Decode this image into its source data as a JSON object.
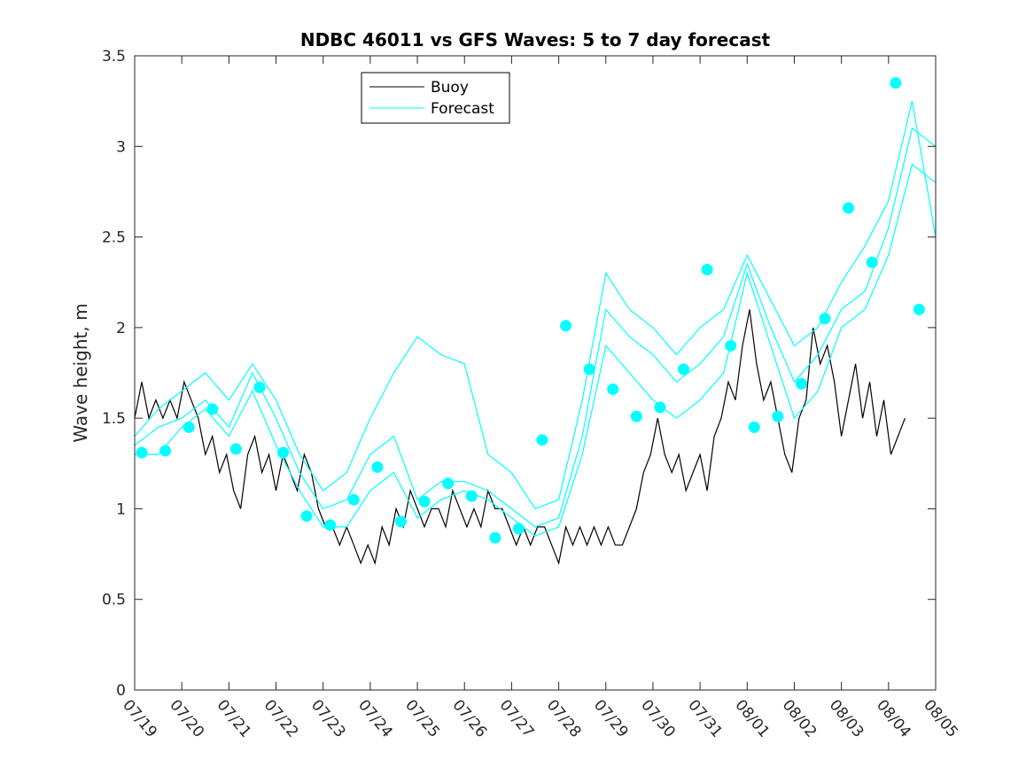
{
  "chart_data": {
    "type": "line",
    "title": "NDBC 46011 vs GFS Waves: 5 to 7 day forecast",
    "xlabel": "",
    "ylabel": "Wave height, m",
    "x_tick_labels": [
      "07/19",
      "07/20",
      "07/21",
      "07/22",
      "07/23",
      "07/24",
      "07/25",
      "07/26",
      "07/27",
      "07/28",
      "07/29",
      "07/30",
      "07/31",
      "08/01",
      "08/02",
      "08/03",
      "08/04",
      "08/05"
    ],
    "y_tick_labels": [
      "0",
      "0.5",
      "1",
      "1.5",
      "2",
      "2.5",
      "3",
      "3.5"
    ],
    "xlim": [
      0,
      17
    ],
    "ylim": [
      0,
      3.5
    ],
    "grid": false,
    "legend_position": "top-center",
    "colors": {
      "buoy": "#000000",
      "forecast": "#00ffff",
      "axes": "#262626"
    },
    "series": [
      {
        "name": "Buoy",
        "style": "line",
        "x": [
          0,
          0.15,
          0.3,
          0.45,
          0.6,
          0.75,
          0.9,
          1.05,
          1.2,
          1.35,
          1.5,
          1.65,
          1.8,
          1.95,
          2.1,
          2.25,
          2.4,
          2.55,
          2.7,
          2.85,
          3.0,
          3.15,
          3.3,
          3.45,
          3.6,
          3.75,
          3.9,
          4.05,
          4.2,
          4.35,
          4.5,
          4.65,
          4.8,
          4.95,
          5.1,
          5.25,
          5.4,
          5.55,
          5.7,
          5.85,
          6.0,
          6.15,
          6.3,
          6.45,
          6.6,
          6.75,
          6.9,
          7.05,
          7.2,
          7.35,
          7.5,
          7.65,
          7.8,
          7.95,
          8.1,
          8.25,
          8.4,
          8.55,
          8.7,
          8.85,
          9.0,
          9.15,
          9.3,
          9.45,
          9.6,
          9.75,
          9.9,
          10.05,
          10.2,
          10.35,
          10.5,
          10.65,
          10.8,
          10.95,
          11.1,
          11.25,
          11.4,
          11.55,
          11.7,
          11.85,
          12.0,
          12.15,
          12.3,
          12.45,
          12.6,
          12.75,
          12.9,
          13.05,
          13.2,
          13.35,
          13.5,
          13.65,
          13.8,
          13.95,
          14.1,
          14.25,
          14.4,
          14.55,
          14.7,
          14.85,
          15.0,
          15.15,
          15.3,
          15.45,
          15.6,
          15.75,
          15.9,
          16.05,
          16.2,
          16.35
        ],
        "y": [
          1.5,
          1.7,
          1.5,
          1.6,
          1.5,
          1.6,
          1.5,
          1.7,
          1.6,
          1.5,
          1.3,
          1.4,
          1.2,
          1.3,
          1.1,
          1.0,
          1.3,
          1.4,
          1.2,
          1.3,
          1.1,
          1.3,
          1.2,
          1.1,
          1.3,
          1.2,
          1.0,
          0.9,
          0.9,
          0.8,
          0.9,
          0.8,
          0.7,
          0.8,
          0.7,
          0.9,
          0.8,
          1.0,
          0.9,
          1.1,
          1.0,
          0.9,
          1.0,
          1.0,
          0.9,
          1.1,
          1.0,
          0.9,
          1.0,
          0.9,
          1.1,
          1.0,
          1.0,
          0.9,
          0.8,
          0.9,
          0.8,
          0.9,
          0.9,
          0.8,
          0.7,
          0.9,
          0.8,
          0.9,
          0.8,
          0.9,
          0.8,
          0.9,
          0.8,
          0.8,
          0.9,
          1.0,
          1.2,
          1.3,
          1.5,
          1.3,
          1.2,
          1.3,
          1.1,
          1.2,
          1.3,
          1.1,
          1.4,
          1.5,
          1.7,
          1.6,
          1.9,
          2.1,
          1.8,
          1.6,
          1.7,
          1.5,
          1.3,
          1.2,
          1.5,
          1.6,
          2.0,
          1.8,
          1.9,
          1.7,
          1.4,
          1.6,
          1.8,
          1.5,
          1.7,
          1.4,
          1.6,
          1.3,
          1.4,
          1.5
        ]
      },
      {
        "name": "Forecast",
        "style": "line",
        "x": [
          0,
          0.5,
          1.0,
          1.5,
          2.0,
          2.5,
          3.0,
          3.5,
          4.0,
          4.5,
          5.0,
          5.5,
          6.0,
          6.5,
          7.0,
          7.5,
          8.0,
          8.5,
          9.0,
          9.5,
          10.0,
          10.5,
          11.0,
          11.5,
          12.0,
          12.5,
          13.0,
          13.5,
          14.0,
          14.5,
          15.0,
          15.5,
          16.0,
          16.5,
          17.0
        ],
        "y": [
          1.3,
          1.3,
          1.45,
          1.55,
          1.4,
          1.65,
          1.35,
          1.1,
          0.9,
          0.9,
          1.1,
          1.2,
          0.95,
          1.05,
          1.1,
          1.05,
          0.95,
          0.85,
          0.9,
          1.3,
          1.9,
          1.75,
          1.6,
          1.5,
          1.6,
          1.75,
          2.3,
          1.9,
          1.5,
          1.65,
          2.0,
          2.1,
          2.4,
          2.9,
          2.8
        ]
      },
      {
        "name": "",
        "style": "line",
        "x": [
          0,
          0.5,
          1.0,
          1.5,
          2.0,
          2.5,
          3.0,
          3.5,
          4.0,
          4.5,
          5.0,
          5.5,
          6.0,
          6.5,
          7.0,
          7.5,
          8.0,
          8.5,
          9.0,
          9.5,
          10.0,
          10.5,
          11.0,
          11.5,
          12.0,
          12.5,
          13.0,
          13.5,
          14.0,
          14.5,
          15.0,
          15.5,
          16.0,
          16.5,
          17.0
        ],
        "y": [
          1.35,
          1.45,
          1.5,
          1.6,
          1.45,
          1.75,
          1.5,
          1.2,
          1.0,
          1.05,
          1.3,
          1.4,
          1.05,
          1.15,
          1.15,
          1.1,
          1.0,
          0.9,
          0.95,
          1.4,
          2.1,
          1.95,
          1.85,
          1.7,
          1.8,
          1.95,
          2.35,
          2.0,
          1.7,
          1.85,
          2.1,
          2.2,
          2.55,
          3.1,
          3.0
        ]
      },
      {
        "name": "",
        "style": "line",
        "x": [
          0,
          0.5,
          1.0,
          1.5,
          2.0,
          2.5,
          3.0,
          3.5,
          4.0,
          4.5,
          5.0,
          5.5,
          6.0,
          6.5,
          7.0,
          7.5,
          8.0,
          8.5,
          9.0,
          9.5,
          10.0,
          10.5,
          11.0,
          11.5,
          12.0,
          12.5,
          13.0,
          13.5,
          14.0,
          14.5,
          15.0,
          15.5,
          16.0,
          16.5,
          17.0
        ],
        "y": [
          1.4,
          1.55,
          1.65,
          1.75,
          1.6,
          1.8,
          1.6,
          1.3,
          1.1,
          1.2,
          1.5,
          1.75,
          1.95,
          1.85,
          1.8,
          1.3,
          1.2,
          1.0,
          1.05,
          1.6,
          2.3,
          2.1,
          2.0,
          1.85,
          2.0,
          2.1,
          2.4,
          2.15,
          1.9,
          2.0,
          2.25,
          2.45,
          2.7,
          3.25,
          2.5
        ]
      },
      {
        "name": "",
        "style": "points",
        "x": [
          0.15,
          0.65,
          1.15,
          1.65,
          2.15,
          2.65,
          3.15,
          3.65,
          4.15,
          4.65,
          5.15,
          5.65,
          6.15,
          6.65,
          7.15,
          7.65,
          8.15,
          8.65,
          9.15,
          9.65,
          10.15,
          10.65,
          11.15,
          11.65,
          12.15,
          12.65,
          13.15,
          13.65,
          14.15,
          14.65,
          15.15,
          15.65,
          16.15,
          16.65
        ],
        "y": [
          1.31,
          1.32,
          1.45,
          1.55,
          1.33,
          1.67,
          1.31,
          0.96,
          0.91,
          1.05,
          1.23,
          0.93,
          1.04,
          1.14,
          1.07,
          0.84,
          0.89,
          1.38,
          2.01,
          1.77,
          1.66,
          1.51,
          1.56,
          1.77,
          2.32,
          1.9,
          1.45,
          1.51,
          1.69,
          2.05,
          2.66,
          2.36,
          3.35,
          2.1
        ]
      }
    ]
  }
}
